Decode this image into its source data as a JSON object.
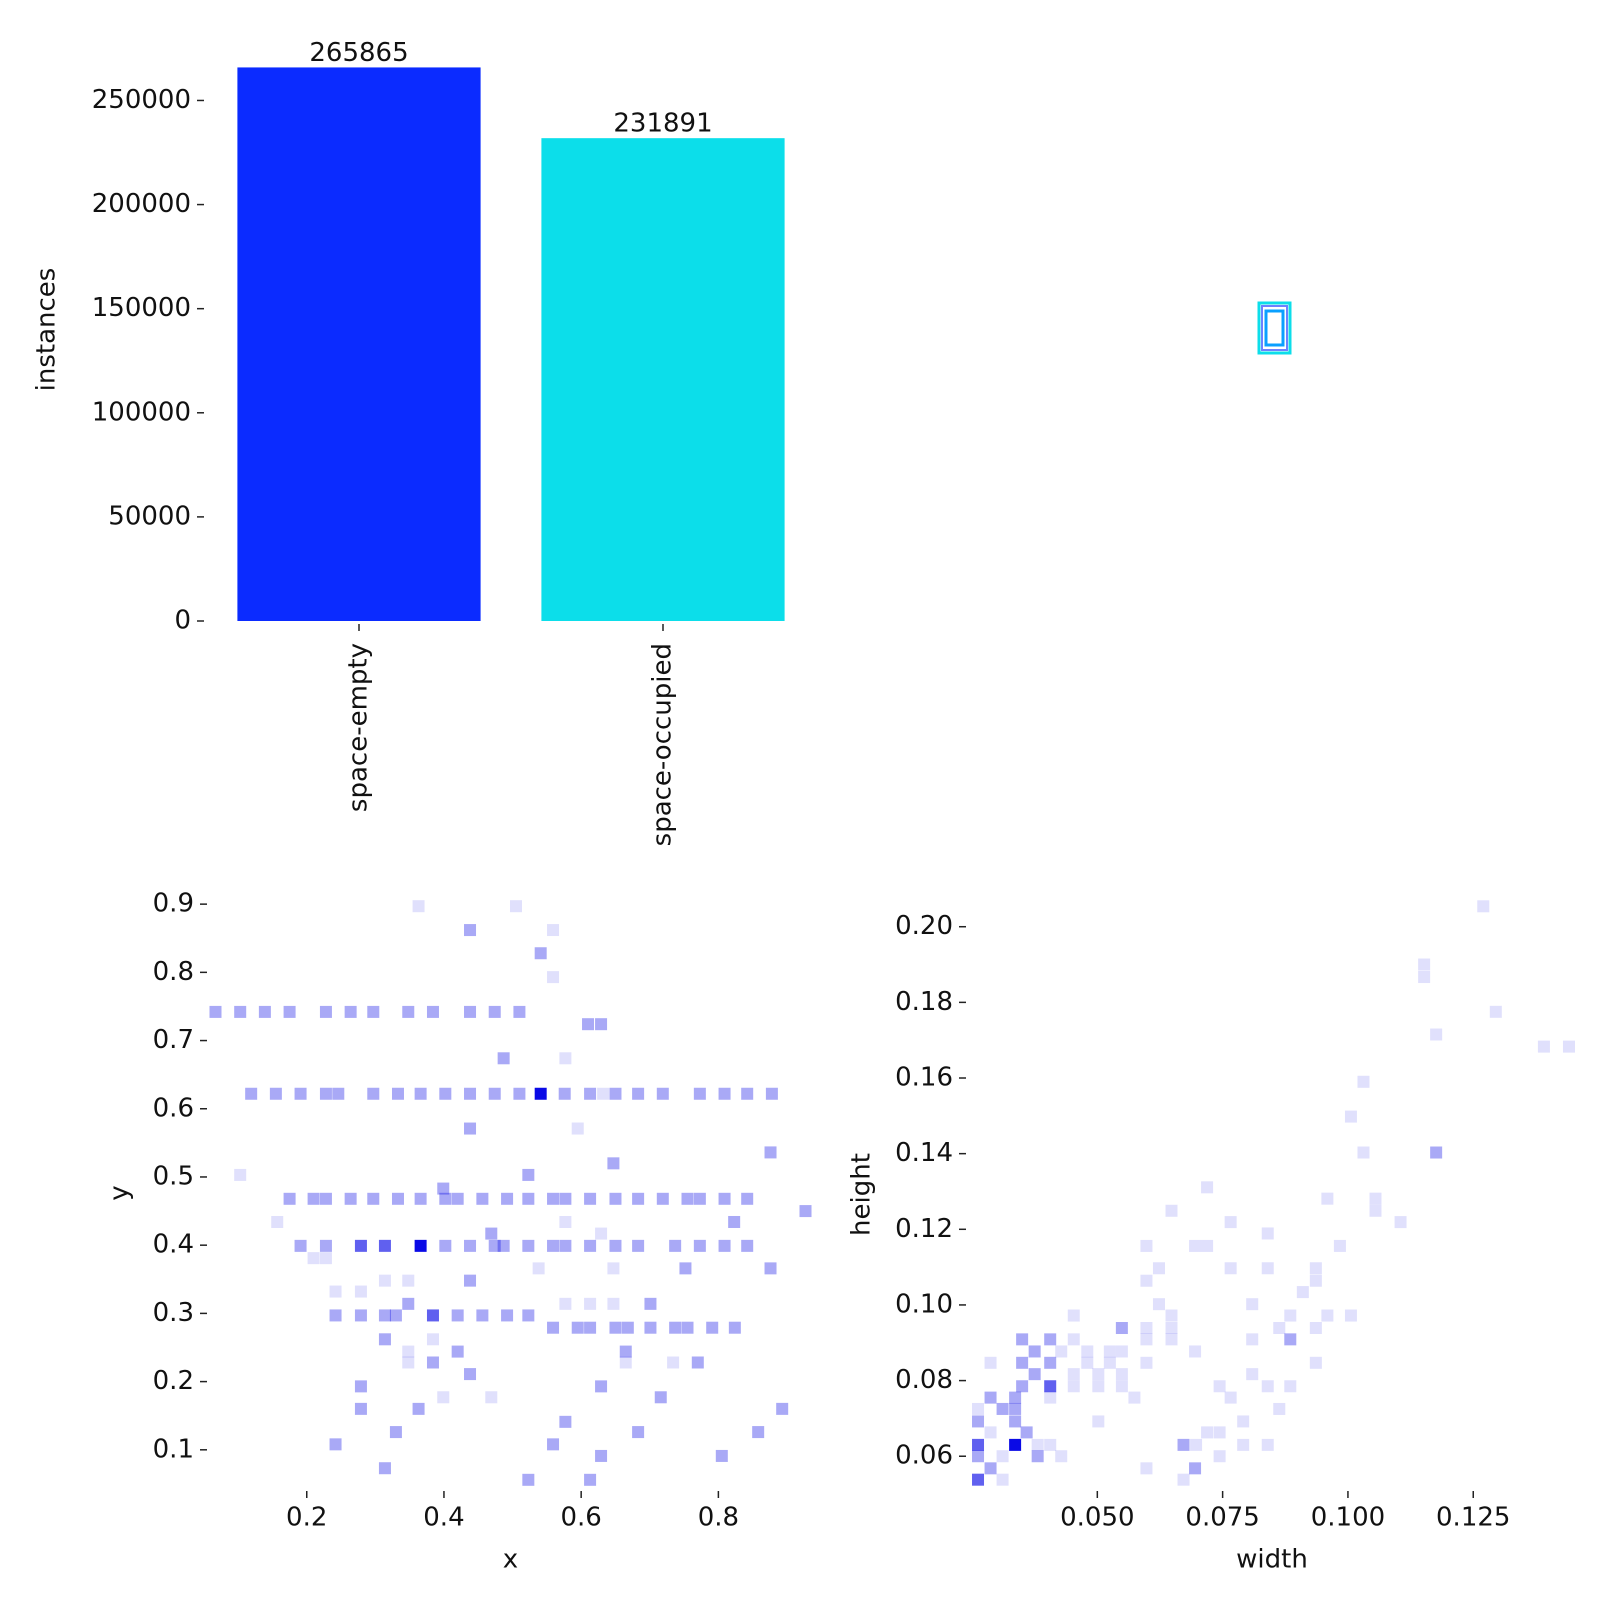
{
  "chart_data": [
    {
      "type": "bar",
      "ylabel": "instances",
      "categories": [
        "space-empty",
        "space-occupied"
      ],
      "values": [
        265865,
        231891
      ],
      "colors": [
        "#0b2bff",
        "#0cdeea"
      ],
      "ylim": [
        0,
        280000
      ],
      "yticks": [
        0,
        50000,
        100000,
        150000,
        200000,
        250000
      ]
    },
    {
      "type": "hist2d",
      "xlabel": "x",
      "ylabel": "y",
      "color": "#0a0ae6",
      "xlim": [
        0.059,
        0.935
      ],
      "ylim": [
        0.044,
        0.909
      ],
      "xticks": [
        0.2,
        0.4,
        0.6,
        0.8
      ],
      "yticks": [
        0.1,
        0.2,
        0.3,
        0.4,
        0.5,
        0.6,
        0.7,
        0.8,
        0.9
      ],
      "x": [
        0.363,
        0.505,
        0.438,
        0.559,
        0.541,
        0.559,
        0.067,
        0.103,
        0.139,
        0.175,
        0.228,
        0.264,
        0.297,
        0.348,
        0.384,
        0.438,
        0.474,
        0.51,
        0.61,
        0.629,
        0.487,
        0.577,
        0.119,
        0.155,
        0.191,
        0.228,
        0.246,
        0.297,
        0.333,
        0.366,
        0.402,
        0.438,
        0.474,
        0.51,
        0.541,
        0.576,
        0.613,
        0.632,
        0.65,
        0.683,
        0.719,
        0.773,
        0.809,
        0.842,
        0.878,
        0.438,
        0.595,
        0.876,
        0.647,
        0.103,
        0.523,
        0.399,
        0.175,
        0.21,
        0.228,
        0.264,
        0.297,
        0.333,
        0.366,
        0.402,
        0.42,
        0.456,
        0.492,
        0.523,
        0.559,
        0.577,
        0.613,
        0.65,
        0.683,
        0.719,
        0.755,
        0.773,
        0.809,
        0.842,
        0.927,
        0.157,
        0.577,
        0.823,
        0.469,
        0.629,
        0.191,
        0.228,
        0.279,
        0.314,
        0.366,
        0.402,
        0.438,
        0.474,
        0.487,
        0.523,
        0.559,
        0.577,
        0.613,
        0.65,
        0.683,
        0.737,
        0.773,
        0.809,
        0.842,
        0.21,
        0.228,
        0.538,
        0.647,
        0.752,
        0.876,
        0.314,
        0.348,
        0.438,
        0.242,
        0.279,
        0.348,
        0.577,
        0.613,
        0.647,
        0.701,
        0.242,
        0.279,
        0.314,
        0.33,
        0.384,
        0.42,
        0.456,
        0.492,
        0.523,
        0.559,
        0.595,
        0.613,
        0.65,
        0.668,
        0.701,
        0.737,
        0.755,
        0.791,
        0.824,
        0.314,
        0.384,
        0.348,
        0.42,
        0.665,
        0.348,
        0.384,
        0.665,
        0.734,
        0.77,
        0.438,
        0.279,
        0.629,
        0.399,
        0.469,
        0.716,
        0.279,
        0.363,
        0.893,
        0.577,
        0.33,
        0.683,
        0.858,
        0.242,
        0.559,
        0.629,
        0.805,
        0.314,
        0.523,
        0.613
      ],
      "y": [
        0.897,
        0.897,
        0.862,
        0.862,
        0.828,
        0.793,
        0.742,
        0.742,
        0.742,
        0.742,
        0.742,
        0.742,
        0.742,
        0.742,
        0.742,
        0.742,
        0.742,
        0.742,
        0.724,
        0.724,
        0.674,
        0.674,
        0.622,
        0.622,
        0.622,
        0.622,
        0.622,
        0.622,
        0.622,
        0.622,
        0.622,
        0.622,
        0.622,
        0.622,
        0.622,
        0.622,
        0.622,
        0.622,
        0.622,
        0.622,
        0.622,
        0.622,
        0.622,
        0.622,
        0.622,
        0.571,
        0.571,
        0.536,
        0.52,
        0.503,
        0.503,
        0.483,
        0.468,
        0.468,
        0.468,
        0.468,
        0.468,
        0.468,
        0.468,
        0.468,
        0.468,
        0.468,
        0.468,
        0.468,
        0.468,
        0.468,
        0.468,
        0.468,
        0.468,
        0.468,
        0.468,
        0.468,
        0.468,
        0.468,
        0.45,
        0.434,
        0.434,
        0.434,
        0.417,
        0.417,
        0.399,
        0.399,
        0.399,
        0.399,
        0.399,
        0.399,
        0.399,
        0.399,
        0.399,
        0.399,
        0.399,
        0.399,
        0.399,
        0.399,
        0.399,
        0.399,
        0.399,
        0.399,
        0.399,
        0.381,
        0.381,
        0.366,
        0.366,
        0.366,
        0.366,
        0.348,
        0.348,
        0.348,
        0.332,
        0.332,
        0.314,
        0.314,
        0.314,
        0.314,
        0.314,
        0.297,
        0.297,
        0.297,
        0.297,
        0.297,
        0.297,
        0.297,
        0.297,
        0.297,
        0.279,
        0.279,
        0.279,
        0.279,
        0.279,
        0.279,
        0.279,
        0.279,
        0.279,
        0.279,
        0.262,
        0.262,
        0.244,
        0.244,
        0.244,
        0.228,
        0.228,
        0.228,
        0.228,
        0.228,
        0.211,
        0.193,
        0.193,
        0.177,
        0.177,
        0.177,
        0.16,
        0.16,
        0.16,
        0.141,
        0.126,
        0.126,
        0.126,
        0.108,
        0.108,
        0.091,
        0.091,
        0.073,
        0.056,
        0.056
      ],
      "values": [
        1,
        1,
        2,
        1,
        2,
        1,
        2,
        2,
        2,
        2,
        2,
        2,
        2,
        2,
        2,
        2,
        2,
        2,
        2,
        2,
        2,
        1,
        2,
        2,
        2,
        2,
        2,
        2,
        2,
        2,
        2,
        2,
        2,
        2,
        4,
        2,
        2,
        1,
        2,
        2,
        2,
        2,
        2,
        2,
        2,
        2,
        1,
        2,
        2,
        1,
        2,
        2,
        2,
        2,
        2,
        2,
        2,
        2,
        2,
        2,
        2,
        2,
        2,
        2,
        2,
        2,
        2,
        2,
        2,
        2,
        2,
        2,
        2,
        2,
        2,
        1,
        1,
        2,
        2,
        1,
        2,
        2,
        3,
        3,
        4,
        2,
        2,
        2,
        2,
        2,
        2,
        2,
        2,
        2,
        2,
        2,
        2,
        2,
        2,
        1,
        1,
        1,
        1,
        2,
        2,
        1,
        1,
        2,
        1,
        1,
        2,
        1,
        1,
        1,
        2,
        2,
        2,
        2,
        2,
        3,
        2,
        2,
        2,
        2,
        2,
        2,
        2,
        2,
        2,
        2,
        2,
        2,
        2,
        2,
        2,
        1,
        1,
        2,
        2,
        1,
        2,
        1,
        1,
        2,
        2,
        2,
        2,
        1,
        1,
        2,
        2,
        2,
        2,
        2,
        2,
        2,
        2,
        2,
        2,
        2,
        2,
        2,
        2,
        2
      ]
    },
    {
      "type": "hist2d",
      "xlabel": "width",
      "ylabel": "height",
      "color": "#0a0ae6",
      "xlim": [
        0.0244,
        0.1453
      ],
      "ylim": [
        0.0516,
        0.2068
      ],
      "xticks": [
        {
          "value": 0.05,
          "label": "0.050"
        },
        0.075,
        {
          "value": 0.1,
          "label": "0.100"
        },
        0.125
      ],
      "yticks": [
        0.06,
        {
          "value": 0.08,
          "label": "0.08"
        },
        {
          "value": 0.1,
          "label": "0.10"
        },
        0.12,
        0.14,
        0.16,
        0.18,
        {
          "value": 0.2,
          "label": "0.20"
        }
      ],
      "x": [
        0.127,
        0.1152,
        0.1152,
        0.1295,
        0.1176,
        0.1391,
        0.1441,
        0.1031,
        0.1006,
        0.1031,
        0.1176,
        0.0719,
        0.0959,
        0.1055,
        0.1055,
        0.0648,
        0.1105,
        0.0766,
        0.084,
        0.0598,
        0.0695,
        0.0719,
        0.0984,
        0.0623,
        0.0766,
        0.084,
        0.0936,
        0.0598,
        0.0936,
        0.091,
        0.0623,
        0.0809,
        0.0648,
        0.0885,
        0.0959,
        0.1006,
        0.0453,
        0.0549,
        0.0598,
        0.0648,
        0.0863,
        0.0936,
        0.035,
        0.0406,
        0.0453,
        0.0598,
        0.0648,
        0.0809,
        0.0885,
        0.0375,
        0.0428,
        0.048,
        0.0525,
        0.0549,
        0.0695,
        0.0287,
        0.035,
        0.0406,
        0.048,
        0.0525,
        0.0598,
        0.0936,
        0.0375,
        0.0453,
        0.0502,
        0.0549,
        0.0809,
        0.035,
        0.0406,
        0.0453,
        0.0502,
        0.0549,
        0.0744,
        0.084,
        0.0885,
        0.0287,
        0.0336,
        0.0406,
        0.0574,
        0.0766,
        0.0863,
        0.0262,
        0.0311,
        0.0336,
        0.0502,
        0.0262,
        0.0336,
        0.0791,
        0.0287,
        0.0359,
        0.0719,
        0.0744,
        0.0381,
        0.0672,
        0.0697,
        0.0791,
        0.084,
        0.0262,
        0.0336,
        0.0406,
        0.0262,
        0.0311,
        0.0381,
        0.0428,
        0.0744,
        0.0287,
        0.0598,
        0.0695,
        0.0262,
        0.0311,
        0.0672
      ],
      "y": [
        0.2054,
        0.19,
        0.1867,
        0.1775,
        0.1715,
        0.1683,
        0.1683,
        0.159,
        0.1498,
        0.1403,
        0.1403,
        0.1311,
        0.1281,
        0.1281,
        0.1249,
        0.1249,
        0.1219,
        0.1219,
        0.1189,
        0.1156,
        0.1156,
        0.1156,
        0.1156,
        0.1097,
        0.1097,
        0.1097,
        0.1097,
        0.1064,
        0.1064,
        0.1034,
        0.1002,
        0.1002,
        0.0972,
        0.0972,
        0.0972,
        0.0972,
        0.0972,
        0.0939,
        0.0939,
        0.0939,
        0.0939,
        0.0939,
        0.0909,
        0.0909,
        0.0909,
        0.0909,
        0.0909,
        0.0909,
        0.0909,
        0.0877,
        0.0877,
        0.0877,
        0.0877,
        0.0877,
        0.0877,
        0.0847,
        0.0847,
        0.0847,
        0.0847,
        0.0847,
        0.0847,
        0.0847,
        0.0817,
        0.0817,
        0.0817,
        0.0817,
        0.0817,
        0.0785,
        0.0785,
        0.0785,
        0.0785,
        0.0785,
        0.0785,
        0.0785,
        0.0785,
        0.0755,
        0.0755,
        0.0755,
        0.0755,
        0.0755,
        0.0725,
        0.0725,
        0.0725,
        0.0725,
        0.0692,
        0.0692,
        0.0692,
        0.0692,
        0.0663,
        0.0663,
        0.0663,
        0.0663,
        0.063,
        0.063,
        0.063,
        0.063,
        0.063,
        0.063,
        0.063,
        0.063,
        0.06,
        0.06,
        0.06,
        0.06,
        0.06,
        0.0568,
        0.0568,
        0.0568,
        0.0538,
        0.0538,
        0.0538
      ],
      "values": [
        1,
        1,
        1,
        1,
        1,
        1,
        1,
        1,
        1,
        1,
        2,
        1,
        1,
        1,
        1,
        1,
        1,
        1,
        1,
        1,
        1,
        1,
        1,
        1,
        1,
        1,
        1,
        1,
        1,
        1,
        1,
        1,
        1,
        1,
        1,
        1,
        1,
        2,
        1,
        1,
        1,
        1,
        2,
        2,
        1,
        1,
        1,
        1,
        2,
        2,
        1,
        1,
        1,
        1,
        1,
        1,
        2,
        2,
        1,
        1,
        1,
        1,
        2,
        1,
        1,
        1,
        1,
        2,
        3,
        1,
        1,
        1,
        1,
        1,
        1,
        2,
        2,
        1,
        1,
        1,
        1,
        1,
        2,
        2,
        1,
        2,
        2,
        1,
        1,
        2,
        1,
        1,
        1,
        2,
        1,
        1,
        1,
        3,
        4,
        1,
        2,
        1,
        2,
        1,
        1,
        2,
        1,
        2,
        3,
        1,
        1
      ]
    }
  ]
}
